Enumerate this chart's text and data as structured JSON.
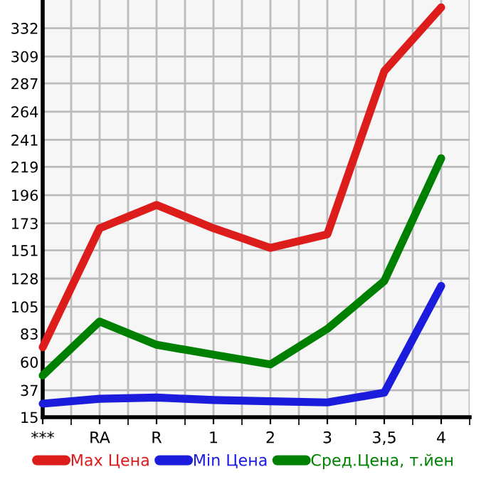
{
  "chart_data": {
    "type": "line",
    "categories": [
      "***",
      "RA",
      "R",
      "1",
      "2",
      "3",
      "3,5",
      "4"
    ],
    "series": [
      {
        "name": "Max Цена",
        "color": "#dd1c1c",
        "values": [
          72,
          169,
          188,
          169,
          153,
          164,
          297,
          349
        ]
      },
      {
        "name": "Min Цена",
        "color": "#1c1cdd",
        "values": [
          26,
          30,
          31,
          29,
          28,
          27,
          35,
          122
        ]
      },
      {
        "name": "Сред.Цена, т.йен",
        "color": "#008000",
        "values": [
          49,
          93,
          74,
          66,
          58,
          87,
          126,
          226
        ]
      }
    ],
    "ylim": [
      15,
      355
    ],
    "yticks": [
      15,
      37,
      60,
      83,
      105,
      128,
      151,
      173,
      196,
      219,
      241,
      264,
      287,
      309,
      332
    ],
    "grid": true,
    "legend": "bottom",
    "marker": "none",
    "line_style": "solid"
  }
}
